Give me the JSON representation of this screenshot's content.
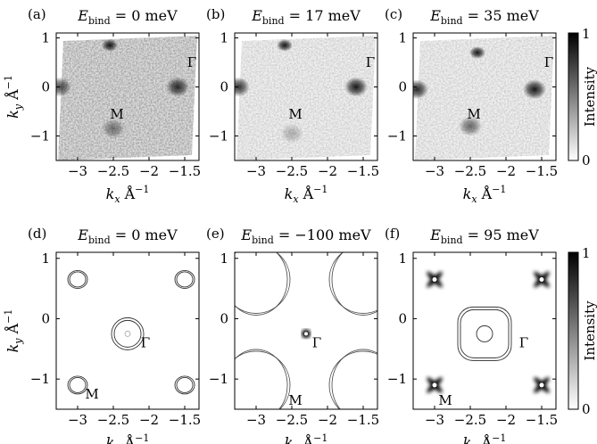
{
  "figure": {
    "colorbar_label": "Intensity",
    "colorbar_ticks": [
      "1",
      "0"
    ],
    "xlabel_main": "k",
    "xlabel_sub": "x",
    "xlabel_unit": "Å",
    "ylabel_main": "k",
    "ylabel_sub": "y",
    "ylabel_unit": "Å",
    "unit_exponent": "−1"
  },
  "chart_data": [
    {
      "type": "heatmap",
      "panel": "(a)",
      "title_prefix": "E",
      "title_sub": "bind",
      "title_value": " = 0 meV",
      "xlim": [
        -3.3,
        -1.3
      ],
      "ylim": [
        -1.5,
        1.1
      ],
      "xticks": [
        {
          "v": -3,
          "label": "−3"
        },
        {
          "v": -2.5,
          "label": "−2.5"
        },
        {
          "v": -2,
          "label": "−2"
        },
        {
          "v": -1.5,
          "label": "−1.5"
        }
      ],
      "yticks": [
        {
          "v": 1,
          "label": "1"
        },
        {
          "v": 0,
          "label": "0"
        },
        {
          "v": -1,
          "label": "−1"
        }
      ],
      "points": [
        {
          "name": "Γ",
          "x": -1.4,
          "y": 0.5
        },
        {
          "name": "M",
          "x": -2.45,
          "y": -0.55
        }
      ],
      "spots": [
        {
          "x": -1.6,
          "y": 0.0,
          "i": 0.8
        },
        {
          "x": -3.25,
          "y": 0.0,
          "i": 0.7
        },
        {
          "x": -2.55,
          "y": 0.85,
          "i": 0.9
        },
        {
          "x": -2.5,
          "y": -0.85,
          "i": 0.45
        }
      ]
    },
    {
      "type": "heatmap",
      "panel": "(b)",
      "title_prefix": "E",
      "title_sub": "bind",
      "title_value": " = 17 meV",
      "xlim": [
        -3.3,
        -1.3
      ],
      "ylim": [
        -1.5,
        1.1
      ],
      "xticks": [
        {
          "v": -3,
          "label": "−3"
        },
        {
          "v": -2.5,
          "label": "−2.5"
        },
        {
          "v": -2,
          "label": "−2"
        },
        {
          "v": -1.5,
          "label": "−1.5"
        }
      ],
      "yticks": [
        {
          "v": 1,
          "label": "1"
        },
        {
          "v": 0,
          "label": "0"
        },
        {
          "v": -1,
          "label": "−1"
        }
      ],
      "points": [
        {
          "name": "Γ",
          "x": -1.4,
          "y": 0.5
        },
        {
          "name": "M",
          "x": -2.45,
          "y": -0.55
        }
      ],
      "spots": [
        {
          "x": -1.6,
          "y": 0.0,
          "i": 0.9
        },
        {
          "x": -3.25,
          "y": 0.0,
          "i": 0.8
        },
        {
          "x": -2.6,
          "y": 0.85,
          "i": 0.9
        },
        {
          "x": -2.5,
          "y": -0.95,
          "i": 0.25
        }
      ]
    },
    {
      "type": "heatmap",
      "panel": "(c)",
      "title_prefix": "E",
      "title_sub": "bind",
      "title_value": " = 35 meV",
      "xlim": [
        -3.3,
        -1.3
      ],
      "ylim": [
        -1.5,
        1.1
      ],
      "xticks": [
        {
          "v": -3,
          "label": "−3"
        },
        {
          "v": -2.5,
          "label": "−2.5"
        },
        {
          "v": -2,
          "label": "−2"
        },
        {
          "v": -1.5,
          "label": "−1.5"
        }
      ],
      "yticks": [
        {
          "v": 1,
          "label": "1"
        },
        {
          "v": 0,
          "label": "0"
        },
        {
          "v": -1,
          "label": "−1"
        }
      ],
      "points": [
        {
          "name": "Γ",
          "x": -1.4,
          "y": 0.5
        },
        {
          "name": "M",
          "x": -2.45,
          "y": -0.55
        }
      ],
      "spots": [
        {
          "x": -1.6,
          "y": -0.05,
          "i": 0.9
        },
        {
          "x": -3.25,
          "y": -0.05,
          "i": 0.85
        },
        {
          "x": -2.4,
          "y": 0.7,
          "i": 0.9
        },
        {
          "x": -2.5,
          "y": -0.8,
          "i": 0.55
        }
      ]
    },
    {
      "type": "diagram",
      "panel": "(d)",
      "title_prefix": "E",
      "title_sub": "bind",
      "title_value": " = 0 meV",
      "xlim": [
        -3.3,
        -1.3
      ],
      "ylim": [
        -1.5,
        1.1
      ],
      "xticks": [
        {
          "v": -3,
          "label": "−3"
        },
        {
          "v": -2.5,
          "label": "−2.5"
        },
        {
          "v": -2,
          "label": "−2"
        },
        {
          "v": -1.5,
          "label": "−1.5"
        }
      ],
      "yticks": [
        {
          "v": 1,
          "label": "1"
        },
        {
          "v": 0,
          "label": "0"
        },
        {
          "v": -1,
          "label": "−1"
        }
      ],
      "points": [
        {
          "name": "Γ",
          "x": -2.05,
          "y": -0.4
        },
        {
          "name": "M",
          "x": -2.8,
          "y": -1.25
        }
      ]
    },
    {
      "type": "diagram",
      "panel": "(e)",
      "title_prefix": "E",
      "title_sub": "bind",
      "title_value": " = −100 meV",
      "xlim": [
        -3.3,
        -1.3
      ],
      "ylim": [
        -1.5,
        1.1
      ],
      "xticks": [
        {
          "v": -3,
          "label": "−3"
        },
        {
          "v": -2.5,
          "label": "−2.5"
        },
        {
          "v": -2,
          "label": "−2"
        },
        {
          "v": -1.5,
          "label": "−1.5"
        }
      ],
      "yticks": [
        {
          "v": 1,
          "label": "1"
        },
        {
          "v": 0,
          "label": "0"
        },
        {
          "v": -1,
          "label": "−1"
        }
      ],
      "points": [
        {
          "name": "Γ",
          "x": -2.15,
          "y": -0.4
        },
        {
          "name": "M",
          "x": -2.45,
          "y": -1.35
        }
      ]
    },
    {
      "type": "diagram",
      "panel": "(f)",
      "title_prefix": "E",
      "title_sub": "bind",
      "title_value": " = 95 meV",
      "xlim": [
        -3.3,
        -1.3
      ],
      "ylim": [
        -1.5,
        1.1
      ],
      "xticks": [
        {
          "v": -3,
          "label": "−3"
        },
        {
          "v": -2.5,
          "label": "−2.5"
        },
        {
          "v": -2,
          "label": "−2"
        },
        {
          "v": -1.5,
          "label": "−1.5"
        }
      ],
      "yticks": [
        {
          "v": 1,
          "label": "1"
        },
        {
          "v": 0,
          "label": "0"
        },
        {
          "v": -1,
          "label": "−1"
        }
      ],
      "points": [
        {
          "name": "Γ",
          "x": -1.75,
          "y": -0.4
        },
        {
          "name": "M",
          "x": -2.85,
          "y": -1.35
        }
      ]
    }
  ]
}
